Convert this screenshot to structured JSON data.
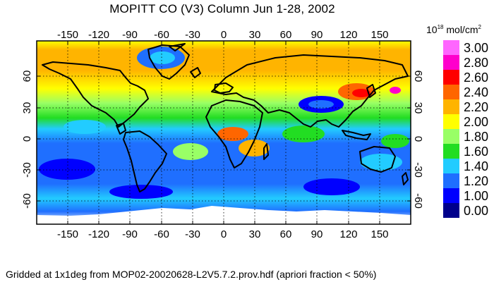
{
  "title": "MOPITT CO (V3) Column Jun 1-28, 2002",
  "units": {
    "base": "10",
    "exponent": "18",
    "rest": " mol/cm",
    "square": "2"
  },
  "footer": "Gridded at 1x1deg from MOP02-20020628-L2V5.7.2.prov.hdf (apriori fraction < 50%)",
  "axes": {
    "longitude_ticks": [
      "-150",
      "-120",
      "-90",
      "-60",
      "-30",
      "0",
      "30",
      "60",
      "90",
      "120",
      "150"
    ],
    "latitude_ticks": [
      "60",
      "30",
      "0",
      "-30",
      "-60"
    ]
  },
  "legend": [
    {
      "label": "3.00",
      "color": "#ff66ff"
    },
    {
      "label": "2.80",
      "color": "#ff00cc"
    },
    {
      "label": "2.60",
      "color": "#ff0000"
    },
    {
      "label": "2.40",
      "color": "#ff6600"
    },
    {
      "label": "2.20",
      "color": "#ffb400"
    },
    {
      "label": "2.00",
      "color": "#ffff00"
    },
    {
      "label": "1.80",
      "color": "#99ff66"
    },
    {
      "label": "1.60",
      "color": "#22dd22"
    },
    {
      "label": "1.40",
      "color": "#22ccff"
    },
    {
      "label": "1.20",
      "color": "#1f6fff"
    },
    {
      "label": "1.00",
      "color": "#0000ff"
    },
    {
      "label": "0.00",
      "color": "#00008b"
    }
  ]
}
